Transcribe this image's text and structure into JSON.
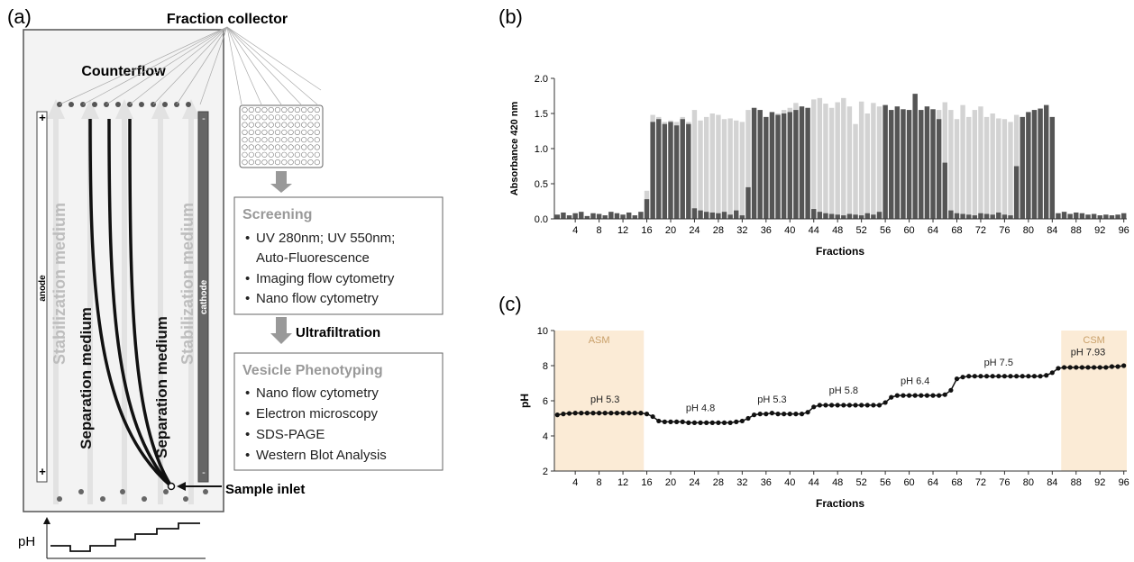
{
  "panels": {
    "a": "(a)",
    "b": "(b)",
    "c": "(c)"
  },
  "diagram": {
    "fraction_collector": "Fraction collector",
    "counterflow": "Counterflow",
    "stabilization_left": "Stabilization medium",
    "stabilization_right": "Stabilization medium",
    "separation_left": "Separation medium",
    "separation_right": "Separation medium",
    "anode": "anode",
    "cathode": "cathode",
    "plus": "+",
    "minus": "-",
    "sample_inlet": "Sample inlet",
    "ph_label": "pH",
    "ultrafiltration": "Ultrafiltration",
    "screening": {
      "title": "Screening",
      "items": [
        "UV 280nm; UV 550nm;",
        "Auto-Fluorescence",
        "Imaging flow cytometry",
        "Nano flow cytometry"
      ]
    },
    "phenotyping": {
      "title": "Vesicle Phenotyping",
      "items": [
        "Nano flow cytometry",
        "Electron microscopy",
        "SDS-PAGE",
        "Western Blot Analysis"
      ]
    },
    "colors": {
      "dark_bar": "#555555",
      "light_bar": "#d3d3d3",
      "zone_fill": "#fbebd6",
      "zone_text": "#c9a06a"
    }
  },
  "chart_data": [
    {
      "type": "bar",
      "panel": "b",
      "xlabel": "Fractions",
      "ylabel": "Absorbance 420 nm",
      "ylim": [
        0,
        2.0
      ],
      "yticks": [
        "0.0",
        "0.5",
        "1.0",
        "1.5",
        "2.0"
      ],
      "xticks": [
        "4",
        "8",
        "12",
        "16",
        "20",
        "24",
        "28",
        "32",
        "36",
        "40",
        "44",
        "48",
        "52",
        "56",
        "60",
        "64",
        "68",
        "72",
        "76",
        "80",
        "84",
        "88",
        "92",
        "96"
      ],
      "series": [
        {
          "color": "#555555",
          "values": [
            0.06,
            0.09,
            0.05,
            0.08,
            0.1,
            0.04,
            0.08,
            0.07,
            0.05,
            0.1,
            0.08,
            0.06,
            0.09,
            0.05,
            0.1,
            0.28,
            1.38,
            1.42,
            1.35,
            1.38,
            1.33,
            1.42,
            1.35,
            0.15,
            0.12,
            0.1,
            0.09,
            0.08,
            0.1,
            0.06,
            0.12,
            0.05,
            0.45,
            1.58,
            1.55,
            1.45,
            1.52,
            1.48,
            1.5,
            1.52,
            1.55,
            1.6,
            1.58,
            0.14,
            0.1,
            0.08,
            0.07,
            0.06,
            0.05,
            0.07,
            0.06,
            0.05,
            0.08,
            0.06,
            0.1,
            1.62,
            1.55,
            1.6,
            1.56,
            1.55,
            1.78,
            1.55,
            1.6,
            1.56,
            1.42,
            0.8,
            0.12,
            0.08,
            0.07,
            0.06,
            0.05,
            0.08,
            0.07,
            0.06,
            0.09,
            0.06,
            0.05,
            0.75,
            1.45,
            1.52,
            1.55,
            1.57,
            1.62,
            1.45,
            0.08,
            0.1,
            0.07,
            0.09,
            0.08,
            0.06,
            0.07,
            0.05,
            0.06,
            0.05,
            0.06,
            0.08
          ]
        },
        {
          "color": "#d3d3d3",
          "values": [
            0.06,
            0.09,
            0.05,
            0.08,
            0.1,
            0.04,
            0.08,
            0.07,
            0.05,
            0.1,
            0.08,
            0.06,
            0.09,
            0.05,
            0.1,
            0.4,
            1.48,
            1.45,
            1.38,
            1.4,
            1.38,
            1.45,
            1.38,
            1.55,
            1.4,
            1.45,
            1.5,
            1.48,
            1.42,
            1.43,
            1.4,
            1.38,
            1.55,
            1.58,
            1.55,
            1.45,
            1.52,
            1.5,
            1.55,
            1.58,
            1.65,
            1.6,
            1.58,
            1.7,
            1.72,
            1.64,
            1.58,
            1.66,
            1.72,
            1.6,
            1.35,
            1.67,
            1.5,
            1.65,
            1.6,
            1.62,
            1.55,
            1.6,
            1.56,
            1.55,
            1.78,
            1.55,
            1.6,
            1.56,
            1.55,
            1.66,
            1.55,
            1.42,
            1.62,
            1.45,
            1.55,
            1.6,
            1.45,
            1.5,
            1.43,
            1.42,
            1.38,
            1.48,
            1.45,
            1.52,
            1.55,
            1.57,
            1.62,
            1.45,
            0.08,
            0.1,
            0.07,
            0.09,
            0.08,
            0.06,
            0.07,
            0.05,
            0.06,
            0.05,
            0.06,
            0.08
          ]
        }
      ]
    },
    {
      "type": "line",
      "panel": "c",
      "xlabel": "Fractions",
      "ylabel": "pH",
      "ylim": [
        2,
        10
      ],
      "yticks": [
        "2",
        "4",
        "6",
        "8",
        "10"
      ],
      "xticks": [
        "4",
        "8",
        "12",
        "16",
        "20",
        "24",
        "28",
        "32",
        "36",
        "40",
        "44",
        "48",
        "52",
        "56",
        "60",
        "64",
        "68",
        "72",
        "76",
        "80",
        "84",
        "88",
        "92",
        "96"
      ],
      "zones": [
        {
          "label": "ASM",
          "x_start": 0.5,
          "x_end": 15.5
        },
        {
          "label": "CSM",
          "x_start": 85.5,
          "x_end": 96.5
        }
      ],
      "annotations": [
        {
          "text": "pH 5.3",
          "x": 9,
          "y": 5.9
        },
        {
          "text": "pH 4.8",
          "x": 25,
          "y": 5.4
        },
        {
          "text": "pH 5.3",
          "x": 37,
          "y": 5.9
        },
        {
          "text": "pH 5.8",
          "x": 49,
          "y": 6.4
        },
        {
          "text": "pH 6.4",
          "x": 61,
          "y": 6.95
        },
        {
          "text": "pH 7.5",
          "x": 75,
          "y": 8.0
        },
        {
          "text": "pH 7.93",
          "x": 90,
          "y": 8.6
        }
      ],
      "series": [
        {
          "color": "#111111",
          "values": [
            5.2,
            5.25,
            5.28,
            5.3,
            5.3,
            5.3,
            5.3,
            5.3,
            5.3,
            5.3,
            5.3,
            5.3,
            5.3,
            5.3,
            5.3,
            5.25,
            5.1,
            4.85,
            4.8,
            4.8,
            4.8,
            4.8,
            4.75,
            4.75,
            4.75,
            4.75,
            4.75,
            4.75,
            4.75,
            4.75,
            4.8,
            4.85,
            5.0,
            5.2,
            5.25,
            5.25,
            5.3,
            5.25,
            5.25,
            5.25,
            5.25,
            5.25,
            5.35,
            5.65,
            5.75,
            5.75,
            5.75,
            5.75,
            5.75,
            5.75,
            5.75,
            5.75,
            5.75,
            5.75,
            5.75,
            5.9,
            6.2,
            6.3,
            6.3,
            6.3,
            6.3,
            6.3,
            6.3,
            6.3,
            6.3,
            6.35,
            6.6,
            7.25,
            7.35,
            7.4,
            7.4,
            7.4,
            7.4,
            7.4,
            7.4,
            7.4,
            7.4,
            7.4,
            7.4,
            7.4,
            7.4,
            7.4,
            7.45,
            7.6,
            7.85,
            7.9,
            7.9,
            7.9,
            7.9,
            7.9,
            7.9,
            7.9,
            7.9,
            7.95,
            7.95,
            8.0
          ]
        }
      ]
    }
  ]
}
